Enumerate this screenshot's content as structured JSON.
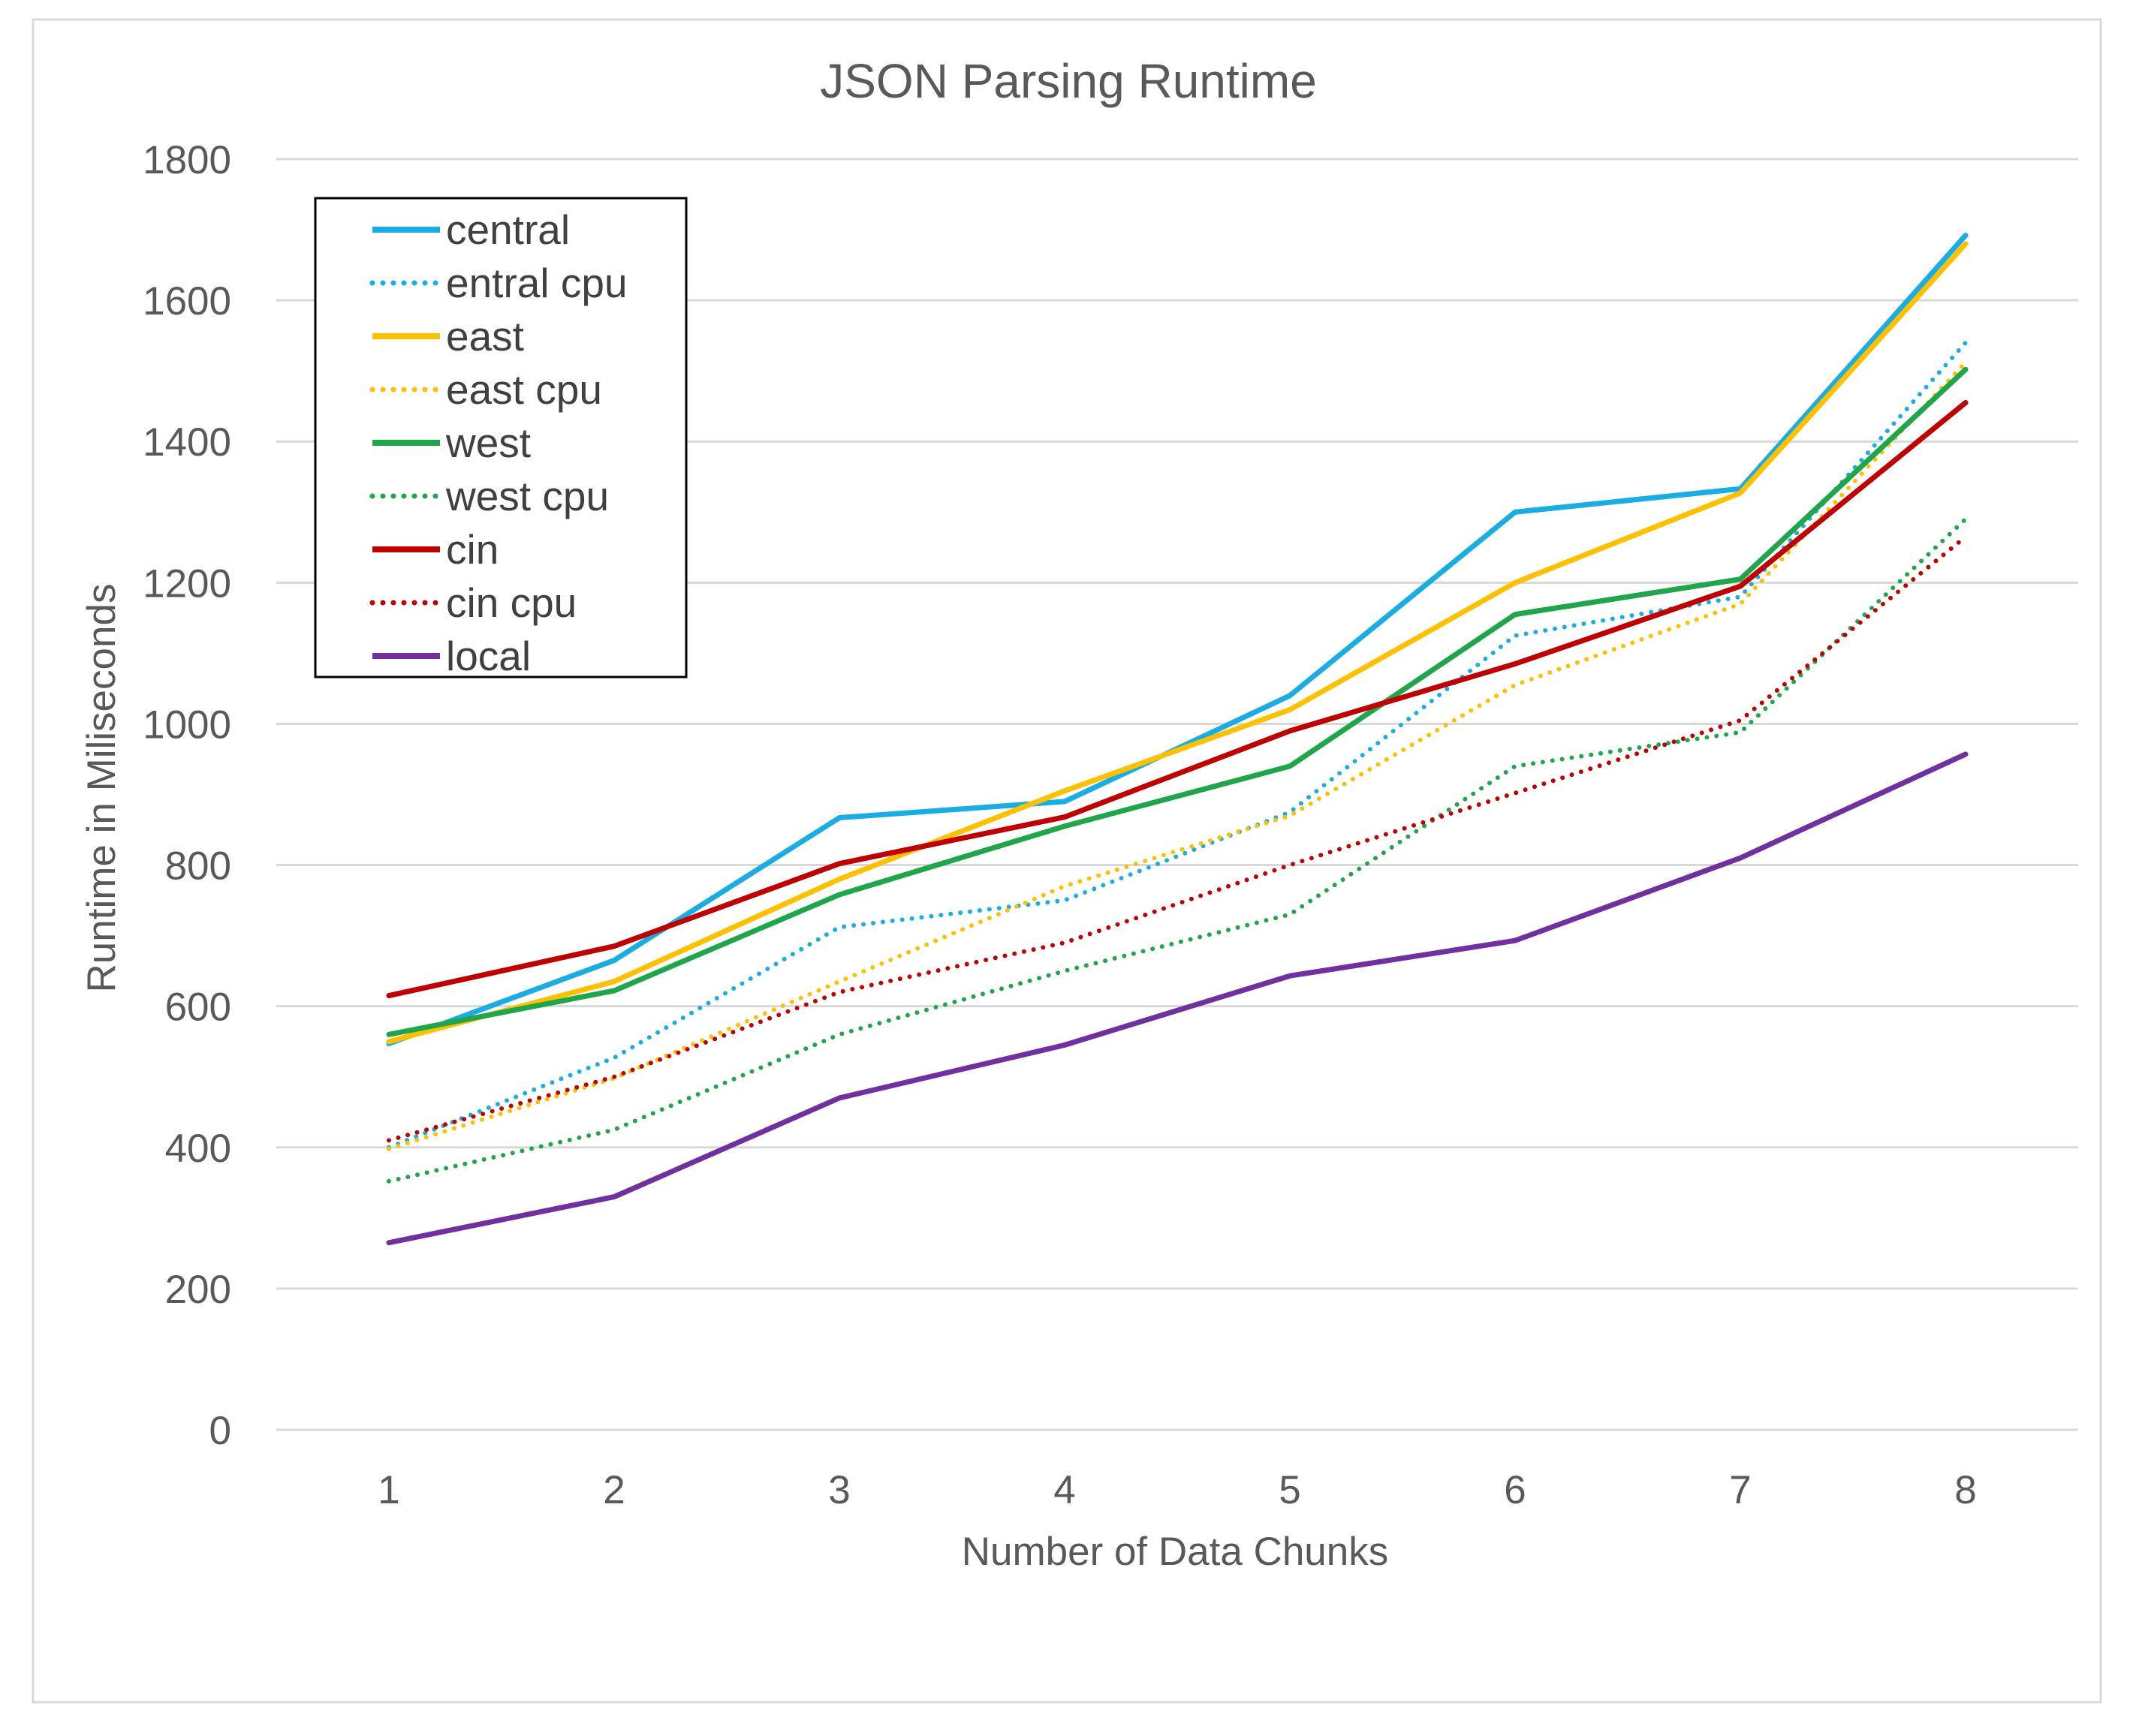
{
  "chart_data": {
    "type": "line",
    "title": "JSON Parsing Runtime",
    "xlabel": "Number of Data Chunks",
    "ylabel": "Runtime in Miliseconds",
    "x": [
      1,
      2,
      3,
      4,
      5,
      6,
      7,
      8
    ],
    "x_tick_labels": [
      "1",
      "2",
      "3",
      "4",
      "5",
      "6",
      "7",
      "8"
    ],
    "ylim": [
      0,
      1800
    ],
    "y_ticks": [
      0,
      200,
      400,
      600,
      800,
      1000,
      1200,
      1400,
      1600,
      1800
    ],
    "y_tick_labels": [
      "0",
      "200",
      "400",
      "600",
      "800",
      "1000",
      "1200",
      "1400",
      "1600",
      "1800"
    ],
    "grid": "horizontal",
    "legend_position": "top-left",
    "series": [
      {
        "name": "central",
        "style": "solid",
        "color": "#1AADE4",
        "values": [
          547,
          665,
          867,
          890,
          1040,
          1300,
          1333,
          1692
        ]
      },
      {
        "name": "entral cpu",
        "style": "dotted",
        "color": "#1AADE4",
        "values": [
          400,
          527,
          712,
          750,
          875,
          1125,
          1180,
          1540
        ]
      },
      {
        "name": "east",
        "style": "solid",
        "color": "#FFC000",
        "values": [
          550,
          635,
          780,
          905,
          1020,
          1200,
          1327,
          1680
        ]
      },
      {
        "name": "east cpu",
        "style": "dotted",
        "color": "#FFC000",
        "values": [
          398,
          498,
          635,
          770,
          870,
          1055,
          1170,
          1512
        ]
      },
      {
        "name": "west",
        "style": "solid",
        "color": "#1FA64A",
        "values": [
          560,
          622,
          758,
          855,
          940,
          1155,
          1205,
          1502
        ]
      },
      {
        "name": "west cpu",
        "style": "dotted",
        "color": "#1FA64A",
        "values": [
          352,
          425,
          560,
          650,
          730,
          940,
          988,
          1290
        ]
      },
      {
        "name": "cin",
        "style": "solid",
        "color": "#C00000",
        "values": [
          615,
          685,
          802,
          868,
          990,
          1085,
          1195,
          1455
        ]
      },
      {
        "name": "cin cpu",
        "style": "dotted",
        "color": "#C00000",
        "values": [
          410,
          500,
          620,
          690,
          800,
          902,
          1005,
          1265
        ]
      },
      {
        "name": "local",
        "style": "solid",
        "color": "#7030A0",
        "values": [
          265,
          330,
          470,
          545,
          643,
          693,
          810,
          957
        ]
      }
    ]
  }
}
